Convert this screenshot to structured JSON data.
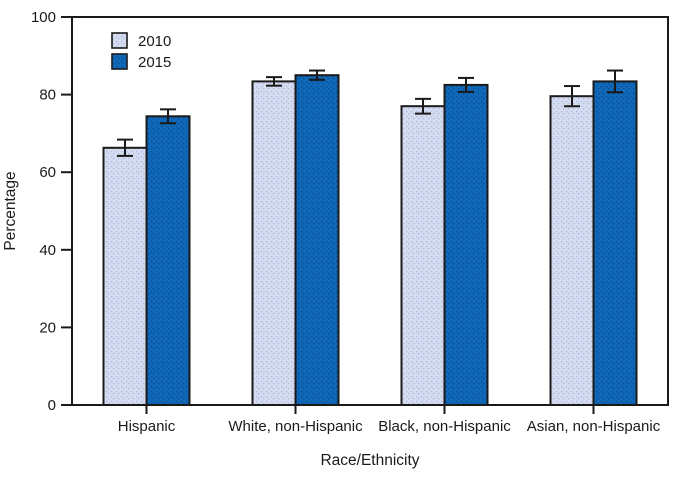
{
  "chart_data": {
    "type": "bar",
    "title": "",
    "xlabel": "Race/Ethnicity",
    "ylabel": "Percentage",
    "categories": [
      "Hispanic",
      "White, non-Hispanic",
      "Black, non-Hispanic",
      "Asian, non-Hispanic"
    ],
    "series": [
      {
        "name": "2010",
        "color": "#d6dcf0",
        "dot_color": "#aab9e4",
        "values": [
          66.3,
          83.4,
          77.0,
          79.6
        ],
        "errors": [
          2.1,
          1.1,
          1.9,
          2.6
        ]
      },
      {
        "name": "2015",
        "color": "#0f68b8",
        "dot_color": "#0a4a8f",
        "values": [
          74.4,
          85.0,
          82.5,
          83.4
        ],
        "errors": [
          1.8,
          1.2,
          1.8,
          2.8
        ]
      }
    ],
    "ylim": [
      0,
      100
    ],
    "y_ticks": [
      0,
      20,
      40,
      60,
      80,
      100
    ],
    "grid": false,
    "legend_position": "top-left-inside",
    "frame_color": "#1a1a1a",
    "background": "#ffffff"
  }
}
